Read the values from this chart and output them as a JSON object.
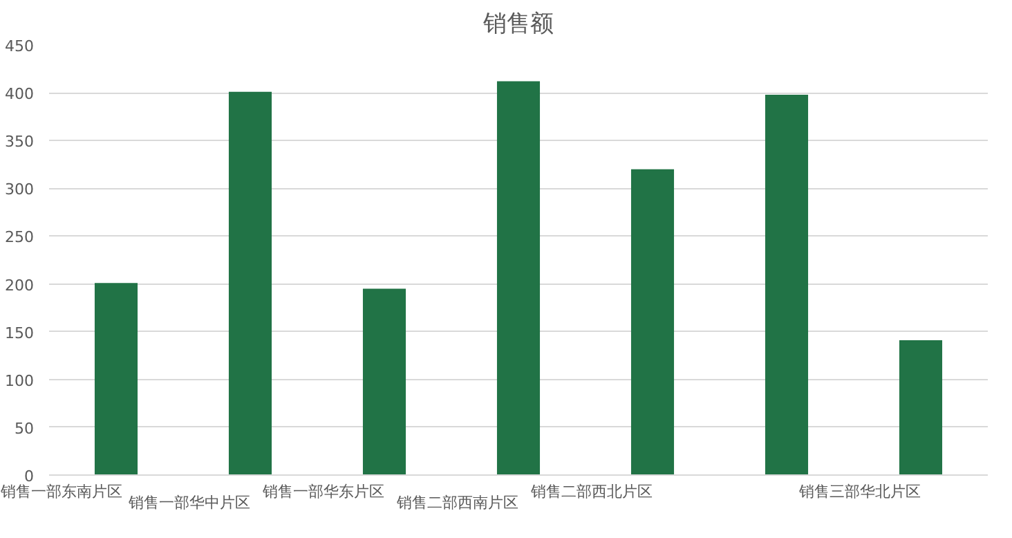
{
  "chart_data": {
    "type": "bar",
    "title": "销售额",
    "categories": [
      "销售一部东南片区",
      "销售一部华中片区",
      "销售一部华东片区",
      "销售二部西南片区",
      "销售二部西北片区",
      null,
      "销售三部华北片区"
    ],
    "values": [
      201,
      401,
      195,
      412,
      320,
      398,
      141
    ],
    "color": "#217346",
    "ylim": [
      0,
      450
    ],
    "yticks": [
      0,
      50,
      100,
      150,
      200,
      250,
      300,
      350,
      400,
      450
    ],
    "grid": "y"
  }
}
